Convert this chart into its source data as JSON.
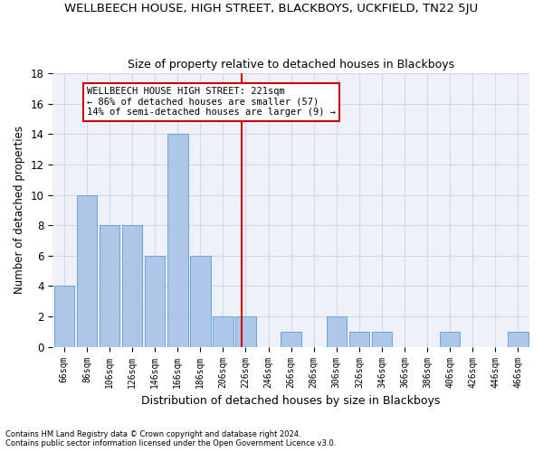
{
  "title": "WELLBEECH HOUSE, HIGH STREET, BLACKBOYS, UCKFIELD, TN22 5JU",
  "subtitle": "Size of property relative to detached houses in Blackboys",
  "xlabel": "Distribution of detached houses by size in Blackboys",
  "ylabel": "Number of detached properties",
  "bar_labels": [
    "66sqm",
    "86sqm",
    "106sqm",
    "126sqm",
    "146sqm",
    "166sqm",
    "186sqm",
    "206sqm",
    "226sqm",
    "246sqm",
    "266sqm",
    "286sqm",
    "306sqm",
    "326sqm",
    "346sqm",
    "366sqm",
    "386sqm",
    "406sqm",
    "426sqm",
    "446sqm",
    "466sqm"
  ],
  "bar_values": [
    4,
    10,
    8,
    8,
    6,
    14,
    6,
    2,
    2,
    0,
    1,
    0,
    2,
    1,
    1,
    0,
    0,
    1,
    0,
    0,
    1
  ],
  "bar_color": "#aec6e8",
  "bar_edge_color": "#5b9bd5",
  "reference_line_x": 7.82,
  "reference_line_color": "#cc0000",
  "annotation_text": "WELLBEECH HOUSE HIGH STREET: 221sqm\n← 86% of detached houses are smaller (57)\n14% of semi-detached houses are larger (9) →",
  "annotation_box_color": "#ffffff",
  "annotation_box_edge_color": "#cc0000",
  "ylim": [
    0,
    18
  ],
  "yticks": [
    0,
    2,
    4,
    6,
    8,
    10,
    12,
    14,
    16,
    18
  ],
  "grid_color": "#d0d8e8",
  "bg_color": "#eef2f8",
  "footnote1": "Contains HM Land Registry data © Crown copyright and database right 2024.",
  "footnote2": "Contains public sector information licensed under the Open Government Licence v3.0."
}
